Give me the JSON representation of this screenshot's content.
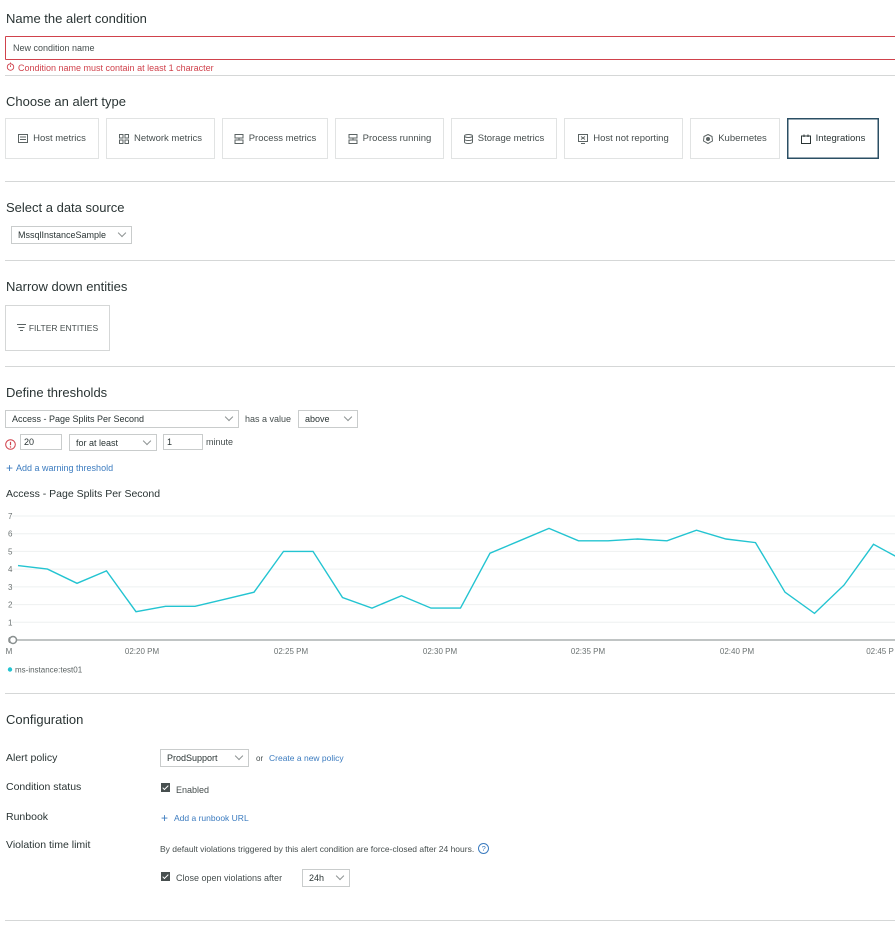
{
  "name_section": {
    "title": "Name the alert condition",
    "input_placeholder": "New condition name",
    "input_value": "",
    "error": "Condition name must contain at least 1 character"
  },
  "alert_type": {
    "title": "Choose an alert type",
    "types": [
      {
        "label": "Host metrics",
        "icon": "host-metrics-icon"
      },
      {
        "label": "Network metrics",
        "icon": "network-icon"
      },
      {
        "label": "Process metrics",
        "icon": "process-icon"
      },
      {
        "label": "Process running",
        "icon": "process-running-icon"
      },
      {
        "label": "Storage metrics",
        "icon": "storage-icon"
      },
      {
        "label": "Host not reporting",
        "icon": "host-not-reporting-icon"
      },
      {
        "label": "Kubernetes",
        "icon": "kubernetes-icon"
      },
      {
        "label": "Integrations",
        "icon": "integrations-icon",
        "selected": true
      }
    ]
  },
  "data_source": {
    "title": "Select a data source",
    "selected": "MssqlInstanceSample"
  },
  "entities": {
    "title": "Narrow down entities",
    "filter_button": "FILTER ENTITIES"
  },
  "thresholds": {
    "title": "Define thresholds",
    "metric": "Access - Page Splits Per Second",
    "has_value_label": "has a value",
    "comparison": "above",
    "critical_value": "20",
    "duration_mode": "for at least",
    "duration_value": "1",
    "duration_unit": "minute",
    "add_warning": "Add a warning threshold"
  },
  "chart_data": {
    "type": "line",
    "title": "Access - Page Splits Per Second",
    "ylim": [
      0,
      7
    ],
    "yticks": [
      "0",
      "1",
      "2",
      "3",
      "4",
      "5",
      "6",
      "7"
    ],
    "xticks": [
      "M",
      "02:20 PM",
      "02:25 PM",
      "02:30 PM",
      "02:35 PM",
      "02:40 PM",
      "02:45 P"
    ],
    "series": [
      {
        "name": "ms-instance:test01",
        "color": "#23c4d1",
        "x": [
          "02:15",
          "02:16",
          "02:17",
          "02:18",
          "02:19",
          "02:20",
          "02:21",
          "02:22",
          "02:23",
          "02:24",
          "02:25",
          "02:26",
          "02:27",
          "02:28",
          "02:29",
          "02:30",
          "02:31",
          "02:32",
          "02:33",
          "02:34",
          "02:35",
          "02:36",
          "02:37",
          "02:38",
          "02:39",
          "02:40",
          "02:41",
          "02:42",
          "02:43",
          "02:44",
          "02:45"
        ],
        "values": [
          4.2,
          4.0,
          3.2,
          3.9,
          1.6,
          1.9,
          1.9,
          2.3,
          2.7,
          5.0,
          5.0,
          2.4,
          1.8,
          2.5,
          1.8,
          1.8,
          4.9,
          5.6,
          6.3,
          5.6,
          5.6,
          5.7,
          5.6,
          6.2,
          5.7,
          5.5,
          2.7,
          1.5,
          3.1,
          5.4,
          4.5
        ]
      }
    ]
  },
  "configuration": {
    "title": "Configuration",
    "alert_policy_label": "Alert policy",
    "alert_policy_value": "ProdSupport",
    "or_text": "or",
    "create_policy_link": "Create a new policy",
    "condition_status_label": "Condition status",
    "enabled_label": "Enabled",
    "runbook_label": "Runbook",
    "add_runbook_link": "Add a runbook URL",
    "violation_label": "Violation time limit",
    "violation_text": "By default violations triggered by this alert condition are force-closed after 24 hours.",
    "close_violations_label": "Close open violations after",
    "close_after_value": "24h"
  },
  "colors": {
    "error": "#d0424c",
    "link": "#3b7bbf",
    "series": "#23c4d1",
    "selected_border": "#2b4f64"
  }
}
